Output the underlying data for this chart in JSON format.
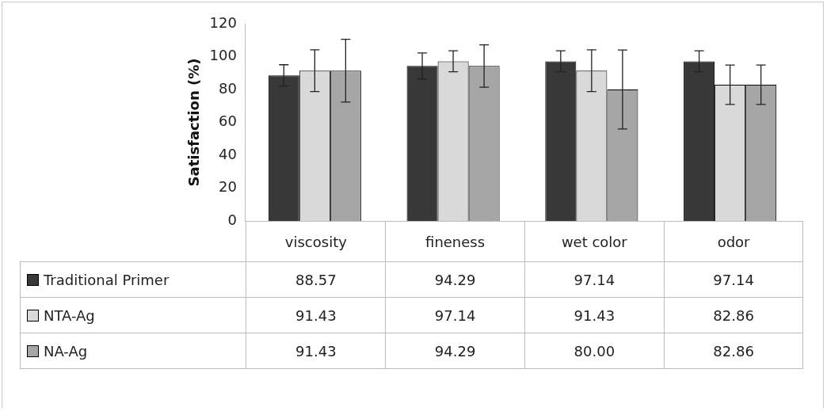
{
  "chart_data": {
    "type": "bar",
    "ylabel": "Satisfaction (%)",
    "categories": [
      "viscosity",
      "fineness",
      "wet color",
      "odor"
    ],
    "series": [
      {
        "name": "Traditional Primer",
        "color": "#383838",
        "values": [
          88.57,
          94.29,
          97.14,
          97.14
        ],
        "value_labels": [
          "88.57",
          "94.29",
          "97.14",
          "97.14"
        ],
        "errors": [
          6.5,
          7.9,
          6.4,
          6.4
        ]
      },
      {
        "name": "NTA-Ag",
        "color": "#d9d9d9",
        "values": [
          91.43,
          97.14,
          91.43,
          82.86
        ],
        "value_labels": [
          "91.43",
          "97.14",
          "91.43",
          "82.86"
        ],
        "errors": [
          12.7,
          6.4,
          12.7,
          12
        ]
      },
      {
        "name": "NA-Ag",
        "color": "#a6a6a6",
        "values": [
          91.43,
          94.29,
          80.0,
          82.86
        ],
        "value_labels": [
          "91.43",
          "94.29",
          "80.00",
          "82.86"
        ],
        "errors": [
          19.1,
          12.9,
          24,
          12
        ]
      }
    ],
    "ylim": [
      0,
      120
    ],
    "yticks": [
      0,
      20,
      40,
      60,
      80,
      100,
      120
    ],
    "grid": false,
    "legend": "bottom"
  }
}
